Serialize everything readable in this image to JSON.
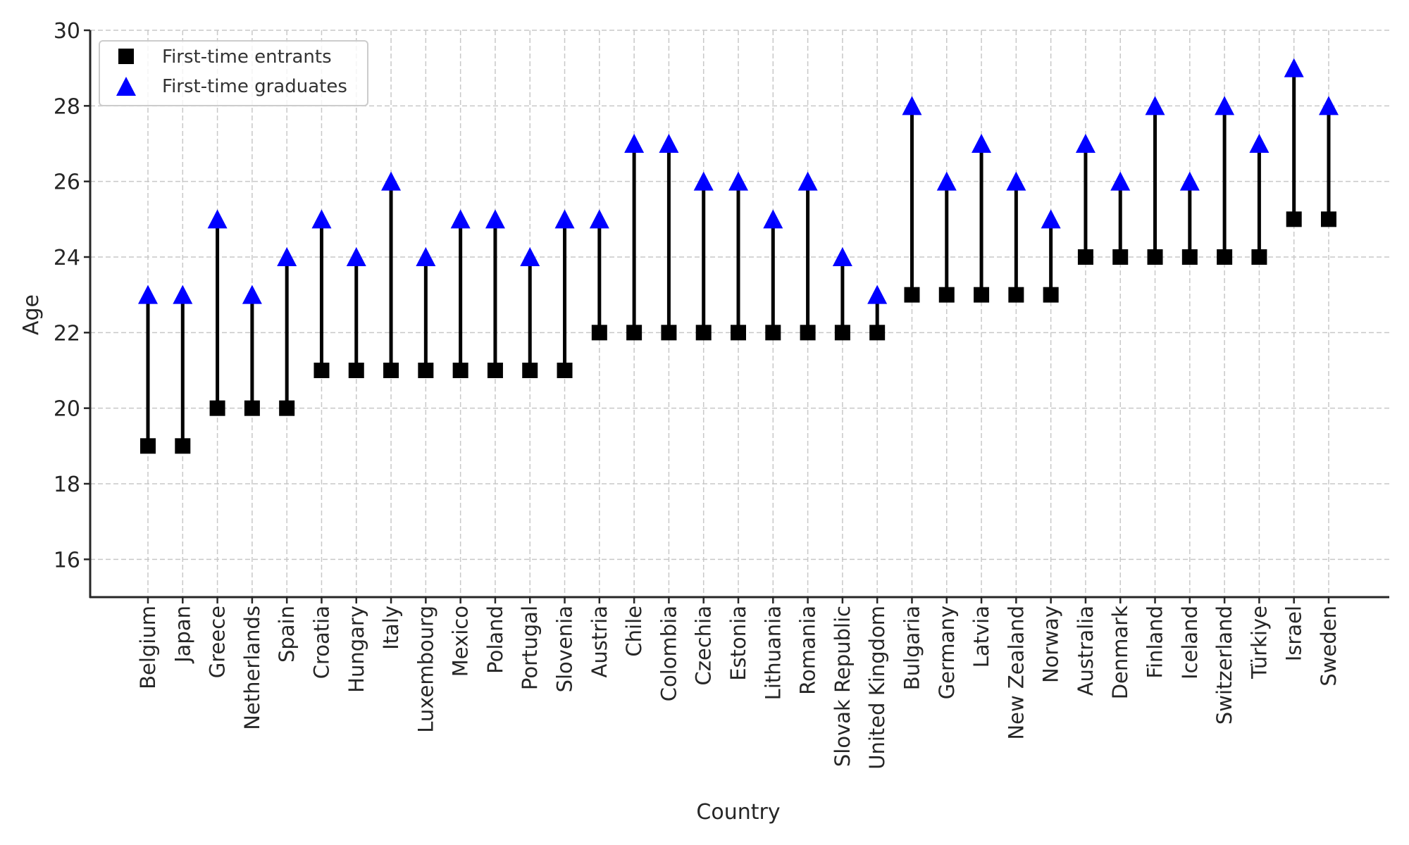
{
  "chart_data": {
    "type": "dumbbell",
    "title": "",
    "xlabel": "Country",
    "ylabel": "Age",
    "ylim": [
      15,
      30
    ],
    "yticks": [
      16,
      18,
      20,
      22,
      24,
      26,
      28,
      30
    ],
    "grid": true,
    "legend_position": "top-left",
    "categories": [
      "Belgium",
      "Japan",
      "Greece",
      "Netherlands",
      "Spain",
      "Croatia",
      "Hungary",
      "Italy",
      "Luxembourg",
      "Mexico",
      "Poland",
      "Portugal",
      "Slovenia",
      "Austria",
      "Chile",
      "Colombia",
      "Czechia",
      "Estonia",
      "Lithuania",
      "Romania",
      "Slovak Republic",
      "United Kingdom",
      "Bulgaria",
      "Germany",
      "Latvia",
      "New Zealand",
      "Norway",
      "Australia",
      "Denmark",
      "Finland",
      "Iceland",
      "Switzerland",
      "Türkiye",
      "Israel",
      "Sweden"
    ],
    "series": [
      {
        "name": "First-time entrants",
        "marker": "square",
        "color": "#000000",
        "values": [
          19,
          19,
          20,
          20,
          20,
          21,
          21,
          21,
          21,
          21,
          21,
          21,
          21,
          22,
          22,
          22,
          22,
          22,
          22,
          22,
          22,
          22,
          23,
          23,
          23,
          23,
          23,
          24,
          24,
          24,
          24,
          24,
          24,
          25,
          25
        ]
      },
      {
        "name": "First-time graduates",
        "marker": "triangle",
        "color": "#0000ff",
        "values": [
          23,
          23,
          25,
          23,
          24,
          25,
          24,
          26,
          24,
          25,
          25,
          24,
          25,
          25,
          27,
          27,
          26,
          26,
          25,
          26,
          24,
          23,
          28,
          26,
          27,
          26,
          25,
          27,
          26,
          28,
          26,
          28,
          27,
          29,
          28
        ]
      }
    ],
    "connector_color": "#000000"
  }
}
